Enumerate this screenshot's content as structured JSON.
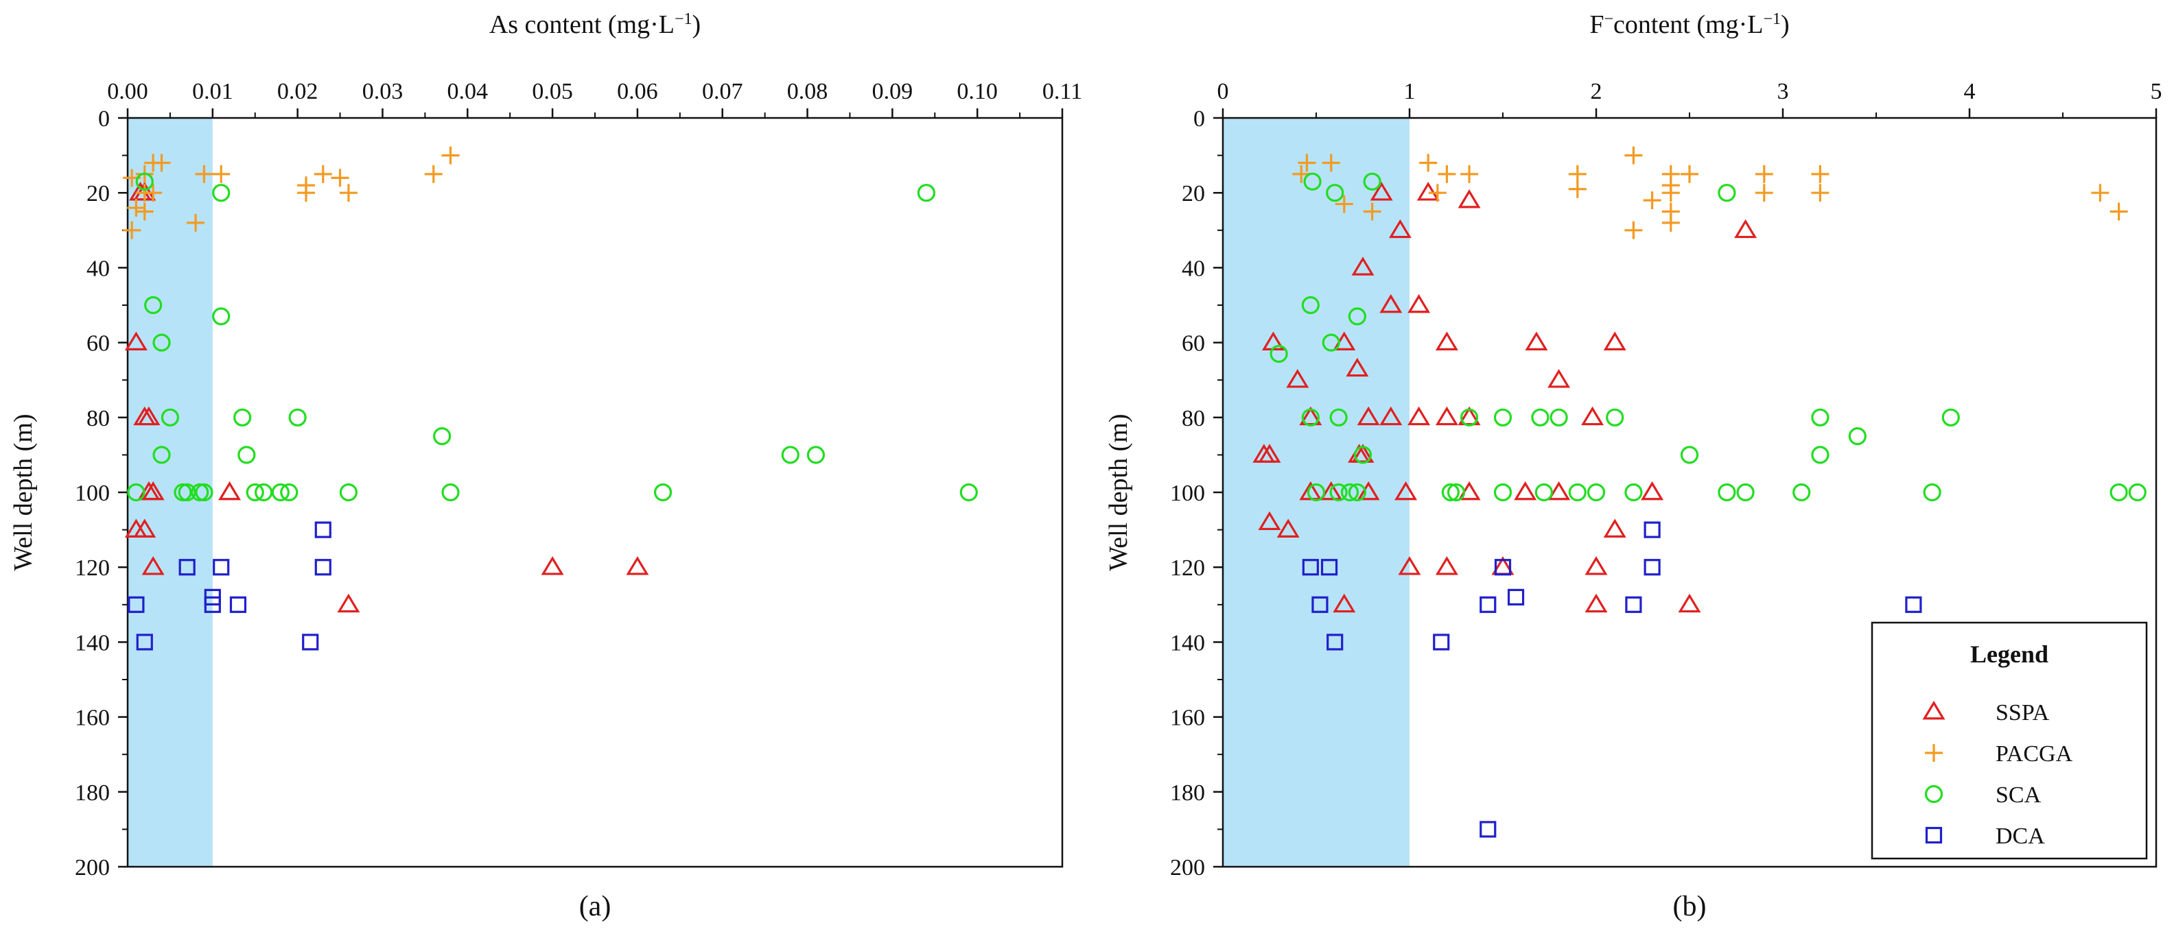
{
  "chart_data": [
    {
      "type": "scatter",
      "panel_label": "(a)",
      "xlabel": "As content (mg·L",
      "xlabel_sup": "−1",
      "xlabel_end": ")",
      "ylabel": "Well depth (m)",
      "xlim": [
        0,
        0.11
      ],
      "ylim": [
        0,
        200
      ],
      "y_inverted": true,
      "x_axis_position": "top",
      "x_ticks": [
        0,
        0.01,
        0.02,
        0.03,
        0.04,
        0.05,
        0.06,
        0.07,
        0.08,
        0.09,
        0.1,
        0.11
      ],
      "x_tick_labels": [
        "0.00",
        "0.01",
        "0.02",
        "0.03",
        "0.04",
        "0.05",
        "0.06",
        "0.07",
        "0.08",
        "0.09",
        "0.10",
        "0.11"
      ],
      "y_ticks": [
        0,
        20,
        40,
        60,
        80,
        100,
        120,
        140,
        160,
        180,
        200
      ],
      "y_tick_labels": [
        "0",
        "20",
        "40",
        "60",
        "80",
        "100",
        "120",
        "140",
        "160",
        "180",
        "200"
      ],
      "limit_band": {
        "from": 0,
        "to": 0.01,
        "color": "#b7e3f8"
      },
      "series": [
        {
          "name": "SSPA",
          "marker": "triangle",
          "color": "#e02020",
          "points": [
            [
              0.002,
              20
            ],
            [
              0.0015,
              20
            ],
            [
              0.001,
              60
            ],
            [
              0.002,
              80
            ],
            [
              0.0025,
              80
            ],
            [
              0.003,
              100
            ],
            [
              0.0025,
              100
            ],
            [
              0.012,
              100
            ],
            [
              0.001,
              110
            ],
            [
              0.002,
              110
            ],
            [
              0.003,
              120
            ],
            [
              0.05,
              120
            ],
            [
              0.06,
              120
            ],
            [
              0.026,
              130
            ]
          ]
        },
        {
          "name": "PACGA",
          "marker": "plus",
          "color": "#f39a22",
          "points": [
            [
              0.038,
              10
            ],
            [
              0.003,
              12
            ],
            [
              0.004,
              12
            ],
            [
              0.002,
              15
            ],
            [
              0.0005,
              16
            ],
            [
              0.009,
              15
            ],
            [
              0.011,
              15
            ],
            [
              0.023,
              15
            ],
            [
              0.025,
              16
            ],
            [
              0.036,
              15
            ],
            [
              0.021,
              18
            ],
            [
              0.021,
              20
            ],
            [
              0.026,
              20
            ],
            [
              0.002,
              20
            ],
            [
              0.003,
              20
            ],
            [
              0.001,
              24
            ],
            [
              0.002,
              25
            ],
            [
              0.008,
              28
            ],
            [
              0.0005,
              30
            ]
          ]
        },
        {
          "name": "SCA",
          "marker": "circle",
          "color": "#22dd22",
          "points": [
            [
              0.002,
              17
            ],
            [
              0.011,
              20
            ],
            [
              0.094,
              20
            ],
            [
              0.003,
              50
            ],
            [
              0.011,
              53
            ],
            [
              0.004,
              60
            ],
            [
              0.005,
              80
            ],
            [
              0.0135,
              80
            ],
            [
              0.02,
              80
            ],
            [
              0.037,
              85
            ],
            [
              0.004,
              90
            ],
            [
              0.014,
              90
            ],
            [
              0.078,
              90
            ],
            [
              0.081,
              90
            ],
            [
              0.001,
              100
            ],
            [
              0.0065,
              100
            ],
            [
              0.007,
              100
            ],
            [
              0.0085,
              100
            ],
            [
              0.009,
              100
            ],
            [
              0.015,
              100
            ],
            [
              0.016,
              100
            ],
            [
              0.018,
              100
            ],
            [
              0.019,
              100
            ],
            [
              0.026,
              100
            ],
            [
              0.038,
              100
            ],
            [
              0.063,
              100
            ],
            [
              0.099,
              100
            ]
          ]
        },
        {
          "name": "DCA",
          "marker": "square",
          "color": "#2020cc",
          "points": [
            [
              0.023,
              110
            ],
            [
              0.007,
              120
            ],
            [
              0.011,
              120
            ],
            [
              0.023,
              120
            ],
            [
              0.01,
              128
            ],
            [
              0.001,
              130
            ],
            [
              0.01,
              130
            ],
            [
              0.013,
              130
            ],
            [
              0.002,
              140
            ],
            [
              0.0215,
              140
            ]
          ]
        }
      ]
    },
    {
      "type": "scatter",
      "panel_label": "(b)",
      "xlabel": "F",
      "xlabel_sup": "−",
      "xlabel_end": "content (mg·L",
      "xlabel_sup2": "−1",
      "xlabel_end2": ")",
      "ylabel": "Well depth (m)",
      "xlim": [
        0,
        5
      ],
      "ylim": [
        0,
        200
      ],
      "y_inverted": true,
      "x_axis_position": "top",
      "x_ticks": [
        0,
        1,
        2,
        3,
        4,
        5
      ],
      "x_tick_labels": [
        "0",
        "1",
        "2",
        "3",
        "4",
        "5"
      ],
      "y_ticks": [
        0,
        20,
        40,
        60,
        80,
        100,
        120,
        140,
        160,
        180,
        200
      ],
      "y_tick_labels": [
        "0",
        "20",
        "40",
        "60",
        "80",
        "100",
        "120",
        "140",
        "160",
        "180",
        "200"
      ],
      "limit_band": {
        "from": 0,
        "to": 1,
        "color": "#b7e3f8"
      },
      "legend": {
        "title": "Legend",
        "entries": [
          "SSPA",
          "PACGA",
          "SCA",
          "DCA"
        ],
        "position": "bottom-right"
      },
      "series": [
        {
          "name": "SSPA",
          "marker": "triangle",
          "color": "#e02020",
          "points": [
            [
              0.85,
              20
            ],
            [
              1.1,
              20
            ],
            [
              1.32,
              22
            ],
            [
              2.8,
              30
            ],
            [
              0.95,
              30
            ],
            [
              0.75,
              40
            ],
            [
              0.9,
              50
            ],
            [
              1.05,
              50
            ],
            [
              0.27,
              60
            ],
            [
              0.65,
              60
            ],
            [
              1.2,
              60
            ],
            [
              1.68,
              60
            ],
            [
              2.1,
              60
            ],
            [
              0.72,
              67
            ],
            [
              0.4,
              70
            ],
            [
              1.8,
              70
            ],
            [
              0.47,
              80
            ],
            [
              0.78,
              80
            ],
            [
              0.9,
              80
            ],
            [
              1.05,
              80
            ],
            [
              1.2,
              80
            ],
            [
              1.32,
              80
            ],
            [
              1.98,
              80
            ],
            [
              0.22,
              90
            ],
            [
              0.25,
              90
            ],
            [
              0.75,
              90
            ],
            [
              0.73,
              90
            ],
            [
              0.47,
              100
            ],
            [
              0.58,
              100
            ],
            [
              0.78,
              100
            ],
            [
              0.98,
              100
            ],
            [
              1.32,
              100
            ],
            [
              1.62,
              100
            ],
            [
              1.8,
              100
            ],
            [
              2.3,
              100
            ],
            [
              0.25,
              108
            ],
            [
              0.35,
              110
            ],
            [
              2.1,
              110
            ],
            [
              1.0,
              120
            ],
            [
              1.2,
              120
            ],
            [
              1.5,
              120
            ],
            [
              2.0,
              120
            ],
            [
              0.65,
              130
            ],
            [
              2.0,
              130
            ],
            [
              2.5,
              130
            ]
          ]
        },
        {
          "name": "PACGA",
          "marker": "plus",
          "color": "#f39a22",
          "points": [
            [
              2.2,
              10
            ],
            [
              0.45,
              12
            ],
            [
              0.58,
              12
            ],
            [
              1.1,
              12
            ],
            [
              0.42,
              15
            ],
            [
              1.2,
              15
            ],
            [
              1.32,
              15
            ],
            [
              1.9,
              15
            ],
            [
              2.4,
              15
            ],
            [
              2.5,
              15
            ],
            [
              2.9,
              15
            ],
            [
              3.2,
              15
            ],
            [
              2.4,
              18
            ],
            [
              1.9,
              19
            ],
            [
              1.15,
              20
            ],
            [
              2.4,
              20
            ],
            [
              2.9,
              20
            ],
            [
              3.2,
              20
            ],
            [
              4.7,
              20
            ],
            [
              2.3,
              22
            ],
            [
              0.65,
              23
            ],
            [
              0.8,
              25
            ],
            [
              2.4,
              25
            ],
            [
              4.8,
              25
            ],
            [
              2.4,
              28
            ],
            [
              2.2,
              30
            ]
          ]
        },
        {
          "name": "SCA",
          "marker": "circle",
          "color": "#22dd22",
          "points": [
            [
              0.48,
              17
            ],
            [
              0.8,
              17
            ],
            [
              0.6,
              20
            ],
            [
              2.7,
              20
            ],
            [
              0.47,
              50
            ],
            [
              0.72,
              53
            ],
            [
              0.58,
              60
            ],
            [
              0.3,
              63
            ],
            [
              0.47,
              80
            ],
            [
              0.62,
              80
            ],
            [
              1.32,
              80
            ],
            [
              1.5,
              80
            ],
            [
              1.7,
              80
            ],
            [
              1.8,
              80
            ],
            [
              2.1,
              80
            ],
            [
              3.2,
              80
            ],
            [
              3.9,
              80
            ],
            [
              3.4,
              85
            ],
            [
              0.75,
              90
            ],
            [
              2.5,
              90
            ],
            [
              3.2,
              90
            ],
            [
              0.5,
              100
            ],
            [
              0.62,
              100
            ],
            [
              0.68,
              100
            ],
            [
              0.72,
              100
            ],
            [
              1.22,
              100
            ],
            [
              1.25,
              100
            ],
            [
              1.5,
              100
            ],
            [
              1.72,
              100
            ],
            [
              1.9,
              100
            ],
            [
              2.0,
              100
            ],
            [
              2.2,
              100
            ],
            [
              2.7,
              100
            ],
            [
              2.8,
              100
            ],
            [
              3.1,
              100
            ],
            [
              3.8,
              100
            ],
            [
              4.8,
              100
            ],
            [
              4.9,
              100
            ]
          ]
        },
        {
          "name": "DCA",
          "marker": "square",
          "color": "#2020cc",
          "points": [
            [
              2.3,
              110
            ],
            [
              0.47,
              120
            ],
            [
              0.57,
              120
            ],
            [
              1.5,
              120
            ],
            [
              2.3,
              120
            ],
            [
              1.57,
              128
            ],
            [
              0.52,
              130
            ],
            [
              1.42,
              130
            ],
            [
              2.2,
              130
            ],
            [
              3.7,
              130
            ],
            [
              0.6,
              140
            ],
            [
              1.17,
              140
            ],
            [
              1.42,
              190
            ]
          ]
        }
      ]
    }
  ]
}
